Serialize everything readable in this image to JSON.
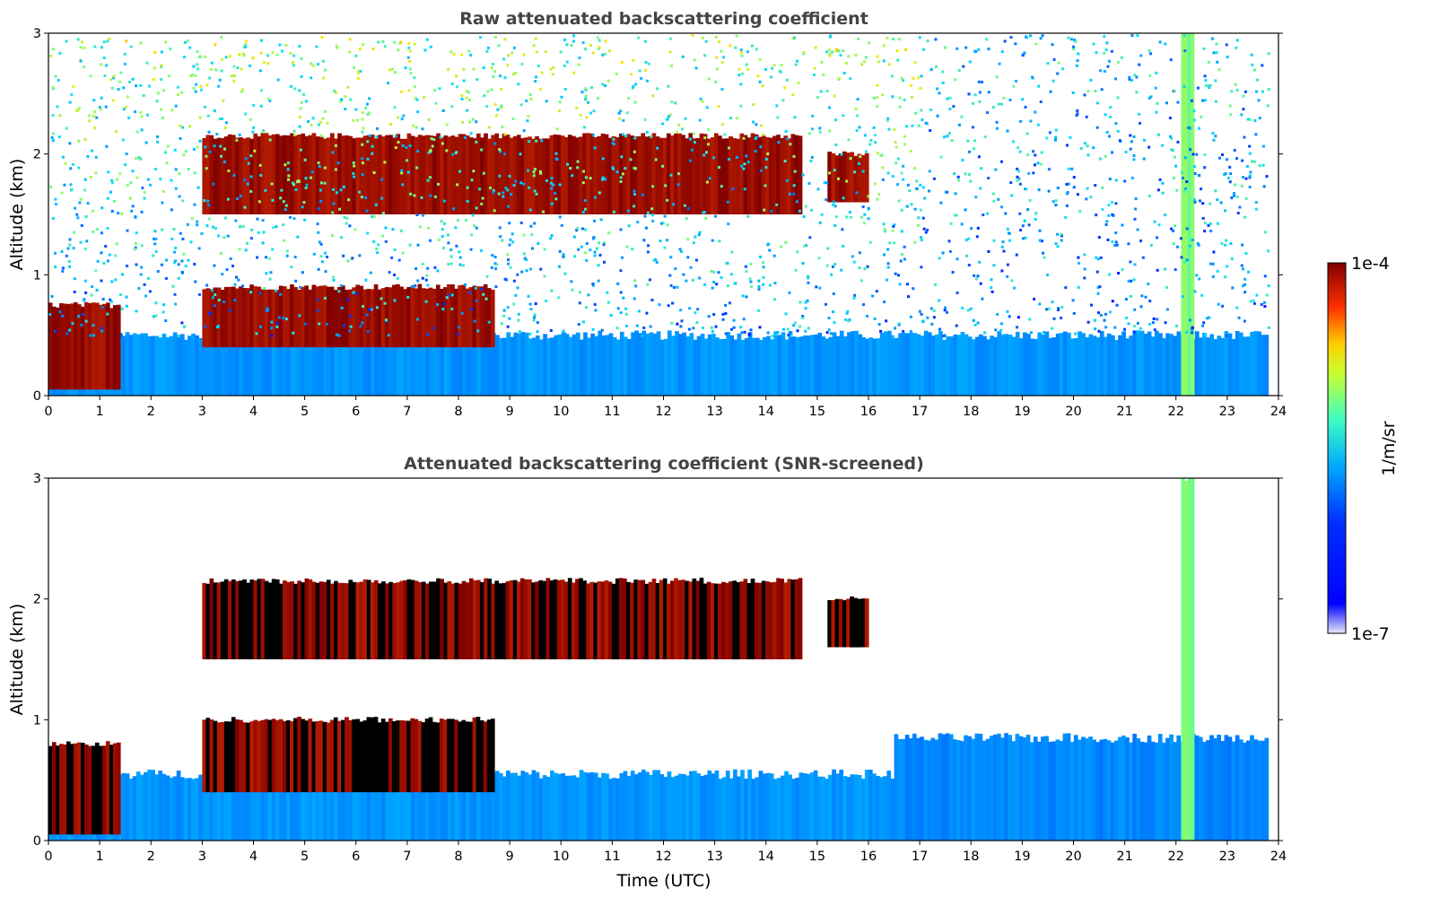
{
  "chart_data": [
    {
      "type": "heatmap",
      "title": "Raw attenuated backscattering coefficient",
      "xlabel": "",
      "ylabel": "Altitude (km)",
      "xlim": [
        0,
        24
      ],
      "ylim": [
        0,
        3
      ],
      "xticks": [
        "0",
        "1",
        "2",
        "3",
        "4",
        "5",
        "6",
        "7",
        "8",
        "9",
        "10",
        "11",
        "12",
        "13",
        "14",
        "15",
        "16",
        "17",
        "18",
        "19",
        "20",
        "21",
        "22",
        "23",
        "24"
      ],
      "yticks": [
        "0",
        "1",
        "2",
        "3"
      ],
      "data_extent_hours": [
        0,
        23.8
      ],
      "features": [
        {
          "feature": "boundary layer aerosol",
          "time": [
            0,
            23.8
          ],
          "top_km": 0.5,
          "level": 0.35
        },
        {
          "feature": "low cloud",
          "time": [
            0,
            1.4
          ],
          "altitude_km": [
            0.05,
            0.75
          ],
          "level": 1.0
        },
        {
          "feature": "cloud layer",
          "time": [
            3.0,
            8.7
          ],
          "altitude_km": [
            0.4,
            0.9
          ],
          "level": 1.0
        },
        {
          "feature": "cloud layer",
          "time": [
            3.0,
            14.7
          ],
          "altitude_km": [
            1.5,
            2.15
          ],
          "level": 1.0
        },
        {
          "feature": "cloud",
          "time": [
            15.2,
            16.0
          ],
          "altitude_km": [
            1.6,
            2.0
          ],
          "level": 1.0
        },
        {
          "feature": "precipitation streak",
          "time": [
            22.1,
            22.35
          ],
          "altitude_km": [
            0,
            3
          ],
          "level": 0.6
        },
        {
          "feature": "noise",
          "time": [
            0,
            23.8
          ],
          "altitude_km": [
            0.5,
            3
          ],
          "level": 0.4
        }
      ]
    },
    {
      "type": "heatmap",
      "title": "Attenuated backscattering coefficient (SNR-screened)",
      "xlabel": "Time (UTC)",
      "ylabel": "Altitude (km)",
      "xlim": [
        0,
        24
      ],
      "ylim": [
        0,
        3
      ],
      "xticks": [
        "0",
        "1",
        "2",
        "3",
        "4",
        "5",
        "6",
        "7",
        "8",
        "9",
        "10",
        "11",
        "12",
        "13",
        "14",
        "15",
        "16",
        "17",
        "18",
        "19",
        "20",
        "21",
        "22",
        "23",
        "24"
      ],
      "yticks": [
        "0",
        "1",
        "2",
        "3"
      ],
      "data_extent_hours": [
        0,
        23.8
      ],
      "features": [
        {
          "feature": "boundary layer aerosol",
          "time": [
            0,
            16.5
          ],
          "top_km": 0.55,
          "level": 0.35
        },
        {
          "feature": "boundary layer aerosol",
          "time": [
            16.5,
            23.8
          ],
          "top_km": 0.85,
          "level": 0.33
        },
        {
          "feature": "low cloud",
          "time": [
            0,
            1.4
          ],
          "altitude_km": [
            0.05,
            0.8
          ],
          "level": 1.0
        },
        {
          "feature": "cloud layer",
          "time": [
            3.0,
            8.7
          ],
          "altitude_km": [
            0.4,
            1.0
          ],
          "level": 1.0
        },
        {
          "feature": "cloud layer",
          "time": [
            3.0,
            14.7
          ],
          "altitude_km": [
            1.5,
            2.15
          ],
          "level": 1.0
        },
        {
          "feature": "cloud",
          "time": [
            15.2,
            16.0
          ],
          "altitude_km": [
            1.6,
            2.0
          ],
          "level": 1.0
        },
        {
          "feature": "precipitation streak",
          "time": [
            22.1,
            22.35
          ],
          "altitude_km": [
            0,
            3
          ],
          "level": 0.6
        }
      ]
    }
  ],
  "colorbar": {
    "max_label": "1e-4",
    "min_label": "1e-7",
    "units": "1/m/sr",
    "colormap": [
      "#e6e6f8",
      "#0000ff",
      "#0080ff",
      "#00d8ff",
      "#7dff7a",
      "#ffe600",
      "#ff4400",
      "#800000"
    ],
    "saturated_color": "#000000"
  }
}
